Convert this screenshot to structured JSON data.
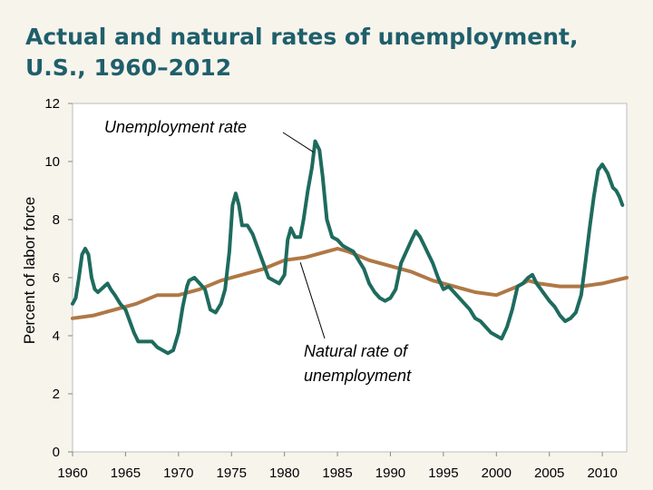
{
  "chart_data": {
    "type": "line",
    "title": "Actual and natural rates of unemployment, U.S., 1960–2012",
    "xlabel": "",
    "ylabel": "Percent of labor force",
    "xlim": [
      1960,
      2012.3
    ],
    "ylim": [
      0,
      12
    ],
    "x_ticks": [
      1960,
      1965,
      1970,
      1975,
      1980,
      1985,
      1990,
      1995,
      2000,
      2005,
      2010
    ],
    "y_ticks": [
      0,
      2,
      4,
      6,
      8,
      10,
      12
    ],
    "grid": false,
    "annotations": [
      {
        "text": "Unemployment rate",
        "series": "actual"
      },
      {
        "text": "Natural rate of",
        "series": "natural"
      },
      {
        "text": "unemployment",
        "series": "natural"
      }
    ],
    "series": [
      {
        "name": "Unemployment rate",
        "color": "#1e6b5e",
        "x": [
          1960,
          1960.3,
          1960.6,
          1960.9,
          1961.2,
          1961.5,
          1961.8,
          1962.1,
          1962.4,
          1962.7,
          1963,
          1963.3,
          1963.6,
          1964,
          1964.5,
          1965,
          1965.4,
          1965.8,
          1966.2,
          1966.6,
          1967,
          1967.5,
          1968,
          1968.5,
          1969,
          1969.5,
          1970,
          1970.4,
          1970.8,
          1971,
          1971.5,
          1972,
          1972.5,
          1973,
          1973.5,
          1974,
          1974.4,
          1974.8,
          1975.1,
          1975.4,
          1975.7,
          1976,
          1976.5,
          1977,
          1977.5,
          1978,
          1978.5,
          1979,
          1979.5,
          1980,
          1980.3,
          1980.6,
          1981,
          1981.5,
          1981.8,
          1982.2,
          1982.6,
          1982.9,
          1983.3,
          1983.6,
          1984,
          1984.5,
          1985,
          1985.5,
          1986,
          1986.5,
          1987,
          1987.5,
          1988,
          1988.5,
          1989,
          1989.5,
          1990,
          1990.5,
          1991,
          1991.5,
          1992,
          1992.4,
          1992.8,
          1993.2,
          1993.6,
          1994,
          1994.5,
          1995,
          1995.5,
          1996,
          1996.5,
          1997,
          1997.5,
          1998,
          1998.5,
          1999,
          1999.5,
          2000,
          2000.5,
          2001,
          2001.5,
          2002,
          2002.5,
          2003,
          2003.4,
          2003.8,
          2004.2,
          2004.6,
          2005,
          2005.5,
          2006,
          2006.5,
          2007,
          2007.5,
          2008,
          2008.4,
          2008.8,
          2009.2,
          2009.6,
          2010,
          2010.5,
          2011,
          2011.3,
          2011.6,
          2011.9
        ],
        "values": [
          5.1,
          5.3,
          6.0,
          6.8,
          7.0,
          6.8,
          6.0,
          5.6,
          5.5,
          5.6,
          5.7,
          5.8,
          5.6,
          5.4,
          5.1,
          4.9,
          4.5,
          4.1,
          3.8,
          3.8,
          3.8,
          3.8,
          3.6,
          3.5,
          3.4,
          3.5,
          4.1,
          5.0,
          5.7,
          5.9,
          6.0,
          5.8,
          5.6,
          4.9,
          4.8,
          5.1,
          5.6,
          6.9,
          8.5,
          8.9,
          8.5,
          7.8,
          7.8,
          7.5,
          7.0,
          6.5,
          6.0,
          5.9,
          5.8,
          6.1,
          7.3,
          7.7,
          7.4,
          7.4,
          8.0,
          9.0,
          9.8,
          10.7,
          10.4,
          9.5,
          8.0,
          7.4,
          7.3,
          7.1,
          7.0,
          6.9,
          6.6,
          6.3,
          5.8,
          5.5,
          5.3,
          5.2,
          5.3,
          5.6,
          6.5,
          6.9,
          7.3,
          7.6,
          7.4,
          7.1,
          6.8,
          6.5,
          6.0,
          5.6,
          5.7,
          5.5,
          5.3,
          5.1,
          4.9,
          4.6,
          4.5,
          4.3,
          4.1,
          4.0,
          3.9,
          4.3,
          4.9,
          5.7,
          5.8,
          6.0,
          6.1,
          5.8,
          5.6,
          5.4,
          5.2,
          5.0,
          4.7,
          4.5,
          4.6,
          4.8,
          5.4,
          6.5,
          7.7,
          8.8,
          9.7,
          9.9,
          9.6,
          9.1,
          9.0,
          8.8,
          8.5
        ],
        "label": "Unemployment rate"
      },
      {
        "name": "Natural rate of unemployment",
        "color": "#b07845",
        "x": [
          1960,
          1962,
          1964,
          1966,
          1968,
          1970,
          1972,
          1974,
          1976,
          1978,
          1980,
          1982,
          1984,
          1985,
          1986,
          1988,
          1990,
          1992,
          1994,
          1996,
          1998,
          2000,
          2002,
          2003,
          2004,
          2006,
          2008,
          2010,
          2012.3
        ],
        "values": [
          4.6,
          4.7,
          4.9,
          5.1,
          5.4,
          5.4,
          5.6,
          5.9,
          6.1,
          6.3,
          6.6,
          6.7,
          6.9,
          7.0,
          6.9,
          6.6,
          6.4,
          6.2,
          5.9,
          5.7,
          5.5,
          5.4,
          5.7,
          5.9,
          5.8,
          5.7,
          5.7,
          5.8,
          6.0
        ],
        "label": "Natural rate of unemployment"
      }
    ]
  }
}
